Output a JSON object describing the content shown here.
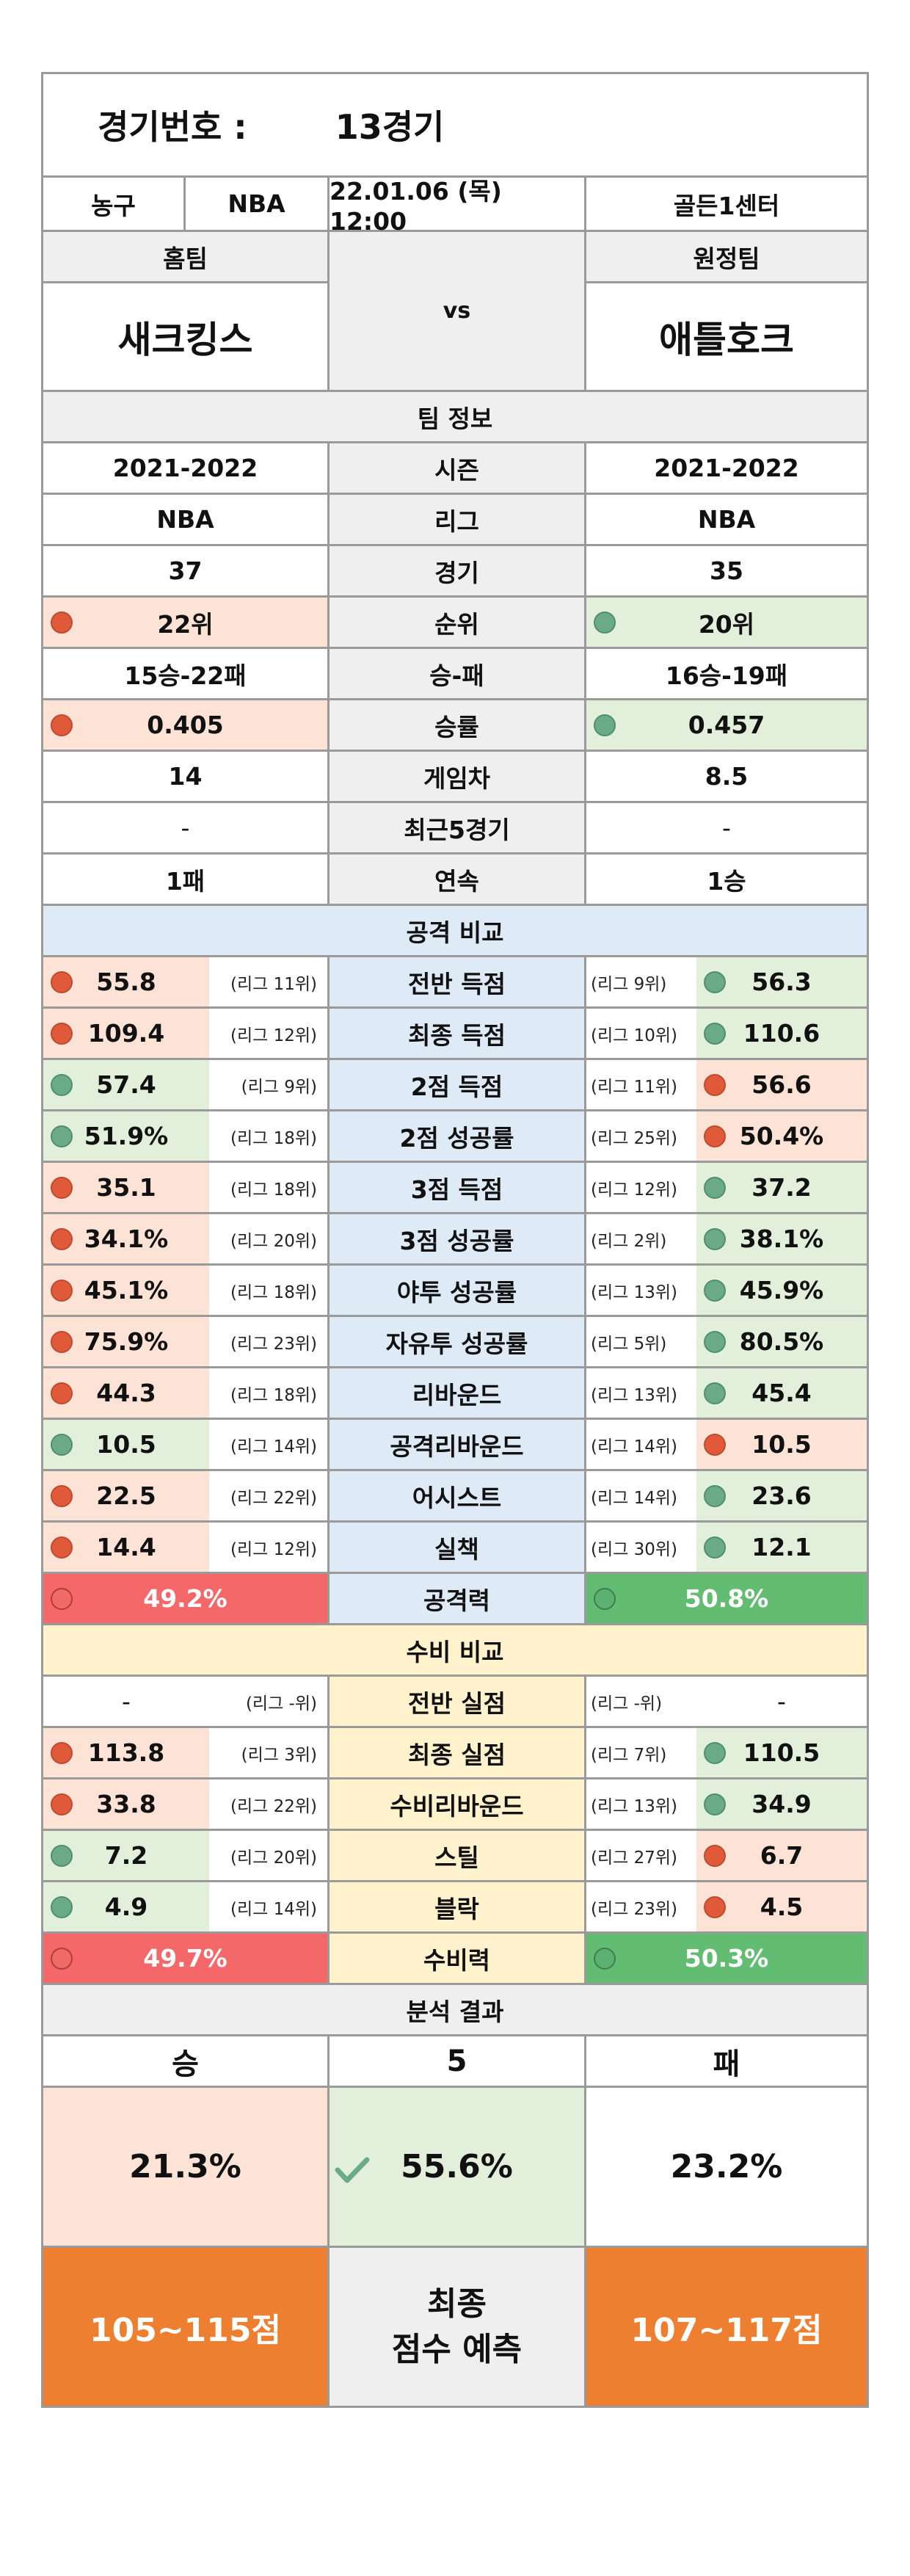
{
  "header": {
    "label": "경기번호 :",
    "match": "13경기"
  },
  "info": {
    "sport": "농구",
    "league": "NBA",
    "datetime": "22.01.06 (목) 12:00",
    "venue": "골든1센터"
  },
  "teams": {
    "home_label": "홈팀",
    "away_label": "원정팀",
    "home": "새크킹스",
    "vs": "vs",
    "away": "애틀호크"
  },
  "team_info": {
    "title": "팀 정보",
    "rows": [
      {
        "label": "시즌",
        "home": "2021-2022",
        "away": "2021-2022"
      },
      {
        "label": "리그",
        "home": "NBA",
        "away": "NBA"
      },
      {
        "label": "경기",
        "home": "37",
        "away": "35"
      },
      {
        "label": "순위",
        "home": "22위",
        "away": "20위"
      },
      {
        "label": "승-패",
        "home": "15승-22패",
        "away": "16승-19패"
      },
      {
        "label": "승률",
        "home": "0.405",
        "away": "0.457"
      },
      {
        "label": "게임차",
        "home": "14",
        "away": "8.5"
      },
      {
        "label": "최근5경기",
        "home": "-",
        "away": "-"
      },
      {
        "label": "연속",
        "home": "1패",
        "away": "1승"
      }
    ]
  },
  "attack": {
    "title": "공격 비교",
    "rows": [
      {
        "label": "전반 득점",
        "home": "55.8",
        "home_rank": "(리그 11위)",
        "away_rank": "(리그 9위)",
        "away": "56.3"
      },
      {
        "label": "최종 득점",
        "home": "109.4",
        "home_rank": "(리그 12위)",
        "away_rank": "(리그 10위)",
        "away": "110.6"
      },
      {
        "label": "2점 득점",
        "home": "57.4",
        "home_rank": "(리그 9위)",
        "away_rank": "(리그 11위)",
        "away": "56.6"
      },
      {
        "label": "2점 성공률",
        "home": "51.9%",
        "home_rank": "(리그 18위)",
        "away_rank": "(리그 25위)",
        "away": "50.4%"
      },
      {
        "label": "3점 득점",
        "home": "35.1",
        "home_rank": "(리그 18위)",
        "away_rank": "(리그 12위)",
        "away": "37.2"
      },
      {
        "label": "3점 성공률",
        "home": "34.1%",
        "home_rank": "(리그 20위)",
        "away_rank": "(리그 2위)",
        "away": "38.1%"
      },
      {
        "label": "야투 성공률",
        "home": "45.1%",
        "home_rank": "(리그 18위)",
        "away_rank": "(리그 13위)",
        "away": "45.9%"
      },
      {
        "label": "자유투 성공률",
        "home": "75.9%",
        "home_rank": "(리그 23위)",
        "away_rank": "(리그 5위)",
        "away": "80.5%"
      },
      {
        "label": "리바운드",
        "home": "44.3",
        "home_rank": "(리그 18위)",
        "away_rank": "(리그 13위)",
        "away": "45.4"
      },
      {
        "label": "공격리바운드",
        "home": "10.5",
        "home_rank": "(리그 14위)",
        "away_rank": "(리그 14위)",
        "away": "10.5"
      },
      {
        "label": "어시스트",
        "home": "22.5",
        "home_rank": "(리그 22위)",
        "away_rank": "(리그 14위)",
        "away": "23.6"
      },
      {
        "label": "실책",
        "home": "14.4",
        "home_rank": "(리그 12위)",
        "away_rank": "(리그 30위)",
        "away": "12.1"
      }
    ],
    "power_label": "공격력",
    "home_power": "49.2%",
    "away_power": "50.8%"
  },
  "defense": {
    "title": "수비 비교",
    "rows": [
      {
        "label": "전반 실점",
        "home": "-",
        "home_rank": "(리그 -위)",
        "away_rank": "(리그 -위)",
        "away": "-"
      },
      {
        "label": "최종 실점",
        "home": "113.8",
        "home_rank": "(리그 3위)",
        "away_rank": "(리그 7위)",
        "away": "110.5"
      },
      {
        "label": "수비리바운드",
        "home": "33.8",
        "home_rank": "(리그 22위)",
        "away_rank": "(리그 13위)",
        "away": "34.9"
      },
      {
        "label": "스틸",
        "home": "7.2",
        "home_rank": "(리그 20위)",
        "away_rank": "(리그 27위)",
        "away": "6.7"
      },
      {
        "label": "블락",
        "home": "4.9",
        "home_rank": "(리그 14위)",
        "away_rank": "(리그 23위)",
        "away": "4.5"
      }
    ],
    "power_label": "수비력",
    "home_power": "49.7%",
    "away_power": "50.3%"
  },
  "analysis": {
    "title": "분석 결과",
    "win": "승",
    "handicap": "5",
    "lose": "패",
    "win_pct": "21.3%",
    "mid_pct": "55.6%",
    "lose_pct": "23.2%",
    "home_score": "105~115점",
    "final_label_1": "최종",
    "final_label_2": "점수 예측",
    "away_score": "107~117점"
  },
  "colors": {
    "better": "#6aaa86",
    "worse": "#e05a3a",
    "attack_bg": "#deebf7",
    "defense_bg": "#fff2cc",
    "score_bg": "#ef7f30"
  }
}
